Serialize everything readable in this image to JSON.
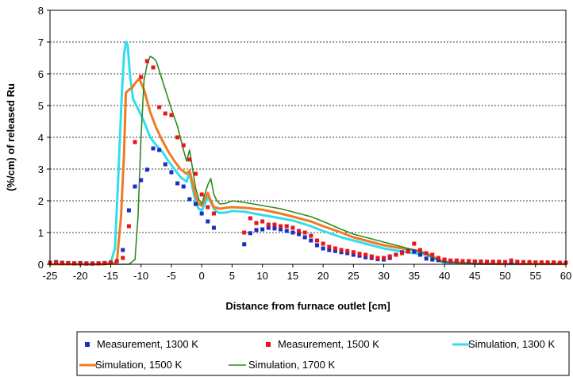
{
  "chart_data": {
    "type": "line",
    "xlabel": "Distance from furnace outlet [cm]",
    "ylabel": "(%/cm) of released Ru",
    "xlim": [
      -25,
      60
    ],
    "ylim": [
      0,
      8
    ],
    "xticks": [
      -25,
      -20,
      -15,
      -10,
      -5,
      0,
      5,
      10,
      15,
      20,
      25,
      30,
      35,
      40,
      45,
      50,
      55,
      60
    ],
    "yticks": [
      0,
      1,
      2,
      3,
      4,
      5,
      6,
      7,
      8
    ],
    "grid": "horizontal dashed",
    "legend_position": "bottom",
    "series": [
      {
        "name": "Measurement, 1300 K",
        "kind": "scatter",
        "color": "#1c2dc4",
        "x": [
          -25,
          -24,
          -23,
          -22,
          -21,
          -20,
          -19,
          -18,
          -17,
          -16,
          -15,
          -14,
          -13,
          -12,
          -11,
          -10,
          -9,
          -8,
          -7,
          -6,
          -5,
          -4,
          -3,
          -2,
          -1,
          0,
          1,
          2,
          7,
          8,
          9,
          10,
          11,
          12,
          13,
          14,
          15,
          16,
          17,
          18,
          19,
          20,
          21,
          22,
          23,
          24,
          25,
          26,
          27,
          28,
          29,
          30,
          31,
          32,
          33,
          34,
          35,
          36,
          37,
          38,
          39,
          40,
          41,
          42,
          43,
          44,
          45,
          46,
          47,
          48,
          49,
          50,
          51,
          52,
          53,
          54,
          55,
          56,
          57,
          58,
          59,
          60
        ],
        "y": [
          0.05,
          0.07,
          0.05,
          0.04,
          0.03,
          0.04,
          0.03,
          0.02,
          0.03,
          0.04,
          0.05,
          0.1,
          0.45,
          1.7,
          2.45,
          2.65,
          2.98,
          3.65,
          3.6,
          3.15,
          2.9,
          2.55,
          2.45,
          2.05,
          1.9,
          1.6,
          1.35,
          1.15,
          0.63,
          0.98,
          1.08,
          1.1,
          1.15,
          1.13,
          1.1,
          1.05,
          1.0,
          0.95,
          0.85,
          0.75,
          0.6,
          0.5,
          0.45,
          0.42,
          0.38,
          0.35,
          0.3,
          0.27,
          0.22,
          0.2,
          0.16,
          0.15,
          0.2,
          0.3,
          0.38,
          0.42,
          0.4,
          0.3,
          0.18,
          0.15,
          0.13,
          0.11,
          0.1,
          0.1,
          0.09,
          0.08,
          0.08,
          0.07,
          0.07,
          0.07,
          0.06,
          0.06,
          0.06,
          0.06,
          0.05,
          0.05,
          0.05,
          0.05,
          0.05,
          0.05,
          0.05,
          0.05
        ]
      },
      {
        "name": "Measurement, 1500 K",
        "kind": "scatter",
        "color": "#e8151b",
        "x": [
          -25,
          -24,
          -23,
          -22,
          -21,
          -20,
          -19,
          -18,
          -17,
          -16,
          -15,
          -14,
          -13,
          -12,
          -11,
          -10,
          -9,
          -8,
          -7,
          -6,
          -5,
          -4,
          -3,
          -2,
          -1,
          0,
          1,
          2,
          7,
          8,
          9,
          10,
          11,
          12,
          13,
          14,
          15,
          16,
          17,
          18,
          19,
          20,
          21,
          22,
          23,
          24,
          25,
          26,
          27,
          28,
          29,
          30,
          31,
          32,
          33,
          34,
          35,
          36,
          37,
          38,
          39,
          40,
          41,
          42,
          43,
          44,
          45,
          46,
          47,
          48,
          49,
          50,
          51,
          52,
          53,
          54,
          55,
          56,
          57,
          58,
          59,
          60
        ],
        "y": [
          0.04,
          0.05,
          0.04,
          0.04,
          0.03,
          0.03,
          0.02,
          0.03,
          0.03,
          0.04,
          0.06,
          0.1,
          0.2,
          1.2,
          3.85,
          5.9,
          6.4,
          6.2,
          4.95,
          4.75,
          4.7,
          4.0,
          3.75,
          3.3,
          2.85,
          2.2,
          1.8,
          1.6,
          1.0,
          1.45,
          1.3,
          1.35,
          1.25,
          1.25,
          1.2,
          1.2,
          1.15,
          1.05,
          1.0,
          0.9,
          0.75,
          0.65,
          0.55,
          0.5,
          0.45,
          0.42,
          0.38,
          0.33,
          0.3,
          0.25,
          0.2,
          0.2,
          0.25,
          0.3,
          0.35,
          0.4,
          0.65,
          0.45,
          0.35,
          0.3,
          0.2,
          0.15,
          0.12,
          0.12,
          0.1,
          0.1,
          0.09,
          0.09,
          0.08,
          0.08,
          0.08,
          0.07,
          0.12,
          0.08,
          0.07,
          0.07,
          0.06,
          0.06,
          0.06,
          0.06,
          0.05,
          0.05
        ]
      },
      {
        "name": "Simulation, 1300 K",
        "kind": "line",
        "color": "#33ddee",
        "width": 3,
        "x": [
          -25,
          -17,
          -15,
          -14.3,
          -13.8,
          -13.2,
          -12.8,
          -12.5,
          -12.2,
          -11.8,
          -11.3,
          -10.5,
          -9.5,
          -8.5,
          -7.5,
          -6.5,
          -5.5,
          -4.5,
          -3.5,
          -2.5,
          -2,
          -1.5,
          -1,
          -0.5,
          0,
          0.5,
          1,
          1.5,
          2,
          2.5,
          3,
          4,
          5,
          7,
          10,
          13,
          15,
          18,
          20,
          23,
          25,
          28,
          30,
          33,
          35,
          37,
          38,
          39,
          40,
          45,
          50,
          55,
          60
        ],
        "y": [
          0,
          0,
          0.05,
          0.5,
          2.5,
          5.2,
          6.6,
          7.0,
          6.9,
          5.9,
          5.2,
          4.9,
          4.5,
          4.0,
          3.75,
          3.55,
          3.25,
          3.0,
          2.75,
          2.6,
          2.9,
          2.4,
          1.95,
          1.75,
          1.7,
          1.9,
          2.1,
          1.95,
          1.75,
          1.65,
          1.62,
          1.63,
          1.68,
          1.66,
          1.55,
          1.45,
          1.38,
          1.2,
          1.05,
          0.85,
          0.75,
          0.6,
          0.5,
          0.4,
          0.35,
          0.3,
          0.22,
          0.12,
          0.05,
          0.02,
          0.01,
          0.01,
          0.01
        ]
      },
      {
        "name": "Simulation, 1500 K",
        "kind": "line",
        "color": "#f07a20",
        "width": 3,
        "x": [
          -25,
          -16,
          -14,
          -13.3,
          -12.8,
          -12.5,
          -12,
          -11.5,
          -11,
          -10.3,
          -9.5,
          -8.5,
          -7.5,
          -6.5,
          -5.5,
          -4.5,
          -3.5,
          -2.5,
          -2,
          -1.5,
          -1,
          -0.5,
          0,
          0.5,
          1,
          1.5,
          2,
          3,
          4,
          5,
          7,
          10,
          13,
          15,
          18,
          20,
          23,
          25,
          28,
          30,
          33,
          35,
          37,
          38,
          39,
          40,
          45,
          50,
          55,
          60
        ],
        "y": [
          0,
          0,
          0.05,
          1.5,
          3.5,
          5.4,
          5.5,
          5.55,
          5.7,
          5.85,
          5.5,
          4.8,
          4.3,
          3.9,
          3.55,
          3.25,
          3.0,
          2.85,
          2.95,
          2.55,
          2.15,
          1.9,
          1.85,
          2.05,
          2.25,
          2.0,
          1.8,
          1.75,
          1.78,
          1.8,
          1.78,
          1.72,
          1.6,
          1.5,
          1.35,
          1.2,
          1.0,
          0.85,
          0.7,
          0.6,
          0.5,
          0.45,
          0.35,
          0.25,
          0.15,
          0.08,
          0.02,
          0.01,
          0.01,
          0.01
        ]
      },
      {
        "name": "Simulation, 1700 K",
        "kind": "line",
        "color": "#2e8b1e",
        "width": 1.6,
        "x": [
          -25,
          -12,
          -11,
          -10.5,
          -10,
          -9.5,
          -9,
          -8.5,
          -8,
          -7.5,
          -7,
          -6.5,
          -6,
          -5,
          -4,
          -3,
          -2.5,
          -2,
          -1.5,
          -1,
          -0.5,
          0,
          0.5,
          1,
          1.5,
          2,
          2.5,
          3,
          4,
          5,
          7,
          10,
          13,
          15,
          18,
          20,
          23,
          25,
          28,
          30,
          33,
          35,
          37,
          38,
          39,
          40,
          45,
          50,
          55,
          60
        ],
        "y": [
          0,
          0,
          0.15,
          1.5,
          4.0,
          5.8,
          6.3,
          6.55,
          6.5,
          6.4,
          6.1,
          5.8,
          5.5,
          4.9,
          4.35,
          3.6,
          3.25,
          3.6,
          3.0,
          2.4,
          2.05,
          1.9,
          2.2,
          2.5,
          2.7,
          2.2,
          2.0,
          1.9,
          1.92,
          2.0,
          1.95,
          1.85,
          1.75,
          1.65,
          1.5,
          1.35,
          1.1,
          0.95,
          0.8,
          0.7,
          0.55,
          0.45,
          0.32,
          0.22,
          0.12,
          0.06,
          0.02,
          0.01,
          0.01,
          0.01
        ]
      }
    ]
  }
}
